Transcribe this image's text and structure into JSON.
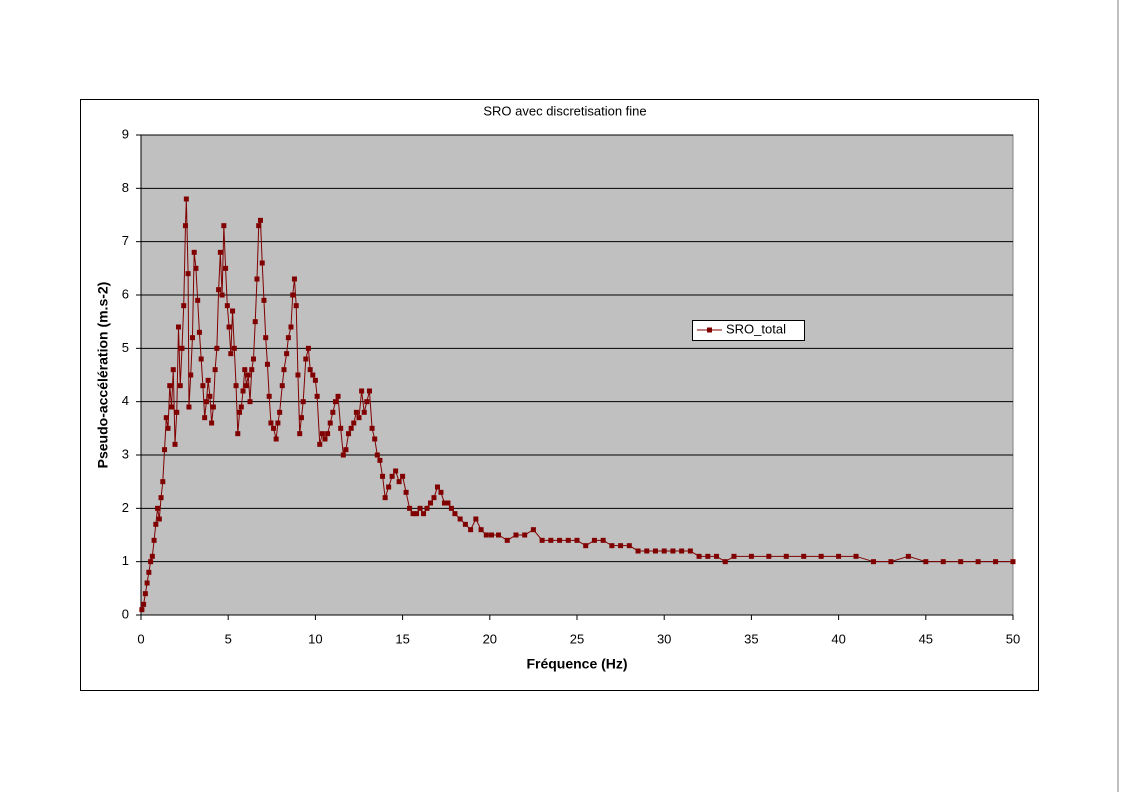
{
  "chart_data": {
    "type": "line",
    "title": "SRO avec discretisation fine",
    "x_label": "Fréquence (Hz)",
    "y_label": "Pseudo-accélération (m.s-2)",
    "xlim": [
      0,
      50
    ],
    "xticks": [
      0,
      5,
      10,
      15,
      20,
      25,
      30,
      35,
      40,
      45,
      50
    ],
    "ylim": [
      0,
      9
    ],
    "yticks": [
      0,
      1,
      2,
      3,
      4,
      5,
      6,
      7,
      8,
      9
    ],
    "grid": true,
    "legend": "right",
    "plot_background": "#c0c0c0",
    "x": [
      0.05,
      0.15,
      0.25,
      0.35,
      0.45,
      0.55,
      0.65,
      0.75,
      0.85,
      0.95,
      1.05,
      1.15,
      1.25,
      1.35,
      1.45,
      1.55,
      1.65,
      1.75,
      1.85,
      1.95,
      2.05,
      2.15,
      2.25,
      2.35,
      2.45,
      2.55,
      2.6,
      2.7,
      2.75,
      2.85,
      2.95,
      3.05,
      3.15,
      3.25,
      3.35,
      3.45,
      3.55,
      3.65,
      3.75,
      3.85,
      3.95,
      4.05,
      4.15,
      4.25,
      4.35,
      4.45,
      4.55,
      4.65,
      4.75,
      4.85,
      4.95,
      5.05,
      5.15,
      5.25,
      5.35,
      5.45,
      5.55,
      5.65,
      5.75,
      5.85,
      5.95,
      6.05,
      6.15,
      6.25,
      6.35,
      6.45,
      6.55,
      6.65,
      6.75,
      6.85,
      6.95,
      7.05,
      7.15,
      7.25,
      7.35,
      7.45,
      7.6,
      7.75,
      7.85,
      7.95,
      8.1,
      8.2,
      8.35,
      8.45,
      8.6,
      8.7,
      8.8,
      8.9,
      9.0,
      9.1,
      9.2,
      9.3,
      9.45,
      9.6,
      9.7,
      9.85,
      10.0,
      10.1,
      10.25,
      10.4,
      10.55,
      10.7,
      10.85,
      11.0,
      11.15,
      11.3,
      11.45,
      11.6,
      11.75,
      11.9,
      12.05,
      12.2,
      12.35,
      12.5,
      12.65,
      12.8,
      12.95,
      13.1,
      13.25,
      13.4,
      13.55,
      13.7,
      13.85,
      14.0,
      14.2,
      14.4,
      14.6,
      14.8,
      15.0,
      15.2,
      15.4,
      15.6,
      15.8,
      16.0,
      16.2,
      16.4,
      16.6,
      16.8,
      17.0,
      17.2,
      17.4,
      17.6,
      17.8,
      18.0,
      18.3,
      18.6,
      18.9,
      19.2,
      19.5,
      19.8,
      20.1,
      20.5,
      21,
      21.5,
      22,
      22.5,
      23,
      23.5,
      24,
      24.5,
      25,
      25.5,
      26,
      26.5,
      27,
      27.5,
      28,
      28.5,
      29,
      29.5,
      30,
      30.5,
      31,
      31.5,
      32,
      32.5,
      33,
      33.5,
      34,
      35,
      36,
      37,
      38,
      39,
      40,
      41,
      42,
      43,
      44,
      45,
      46,
      47,
      48,
      49,
      50
    ],
    "series": [
      {
        "name": "SRO_total",
        "color": "#800000",
        "values": [
          0.1,
          0.2,
          0.4,
          0.6,
          0.8,
          1.0,
          1.1,
          1.4,
          1.7,
          2.0,
          1.8,
          2.2,
          2.5,
          3.1,
          3.7,
          3.5,
          4.3,
          3.9,
          4.6,
          3.2,
          3.8,
          5.4,
          4.3,
          5.0,
          5.8,
          7.3,
          7.8,
          6.4,
          3.9,
          4.5,
          5.2,
          6.8,
          6.5,
          5.9,
          5.3,
          4.8,
          4.3,
          3.7,
          4.0,
          4.4,
          4.1,
          3.6,
          3.9,
          4.6,
          5.0,
          6.1,
          6.8,
          6.0,
          7.3,
          6.5,
          5.8,
          5.4,
          4.9,
          5.7,
          5.0,
          4.3,
          3.4,
          3.8,
          3.9,
          4.2,
          4.6,
          4.3,
          4.5,
          4.0,
          4.6,
          4.8,
          5.5,
          6.3,
          7.3,
          7.4,
          6.6,
          5.9,
          5.2,
          4.7,
          4.1,
          3.6,
          3.5,
          3.3,
          3.6,
          3.8,
          4.3,
          4.6,
          4.9,
          5.2,
          5.4,
          6.0,
          6.3,
          5.8,
          4.5,
          3.4,
          3.7,
          4.0,
          4.8,
          5.0,
          4.6,
          4.5,
          4.4,
          4.1,
          3.2,
          3.4,
          3.3,
          3.4,
          3.6,
          3.8,
          4.0,
          4.1,
          3.5,
          3.0,
          3.1,
          3.4,
          3.5,
          3.6,
          3.8,
          3.7,
          4.2,
          3.8,
          4.0,
          4.2,
          3.5,
          3.3,
          3.0,
          2.9,
          2.6,
          2.2,
          2.4,
          2.6,
          2.7,
          2.5,
          2.6,
          2.3,
          2.0,
          1.9,
          1.9,
          2.0,
          1.9,
          2.0,
          2.1,
          2.2,
          2.4,
          2.3,
          2.1,
          2.1,
          2.0,
          1.9,
          1.8,
          1.7,
          1.6,
          1.8,
          1.6,
          1.5,
          1.5,
          1.5,
          1.4,
          1.5,
          1.5,
          1.6,
          1.4,
          1.4,
          1.4,
          1.4,
          1.4,
          1.3,
          1.4,
          1.4,
          1.3,
          1.3,
          1.3,
          1.2,
          1.2,
          1.2,
          1.2,
          1.2,
          1.2,
          1.2,
          1.1,
          1.1,
          1.1,
          1.0,
          1.1,
          1.1,
          1.1,
          1.1,
          1.1,
          1.1,
          1.1,
          1.1,
          1.0,
          1.0,
          1.1,
          1.0,
          1.0,
          1.0,
          1.0,
          1.0,
          1.0
        ]
      }
    ]
  }
}
